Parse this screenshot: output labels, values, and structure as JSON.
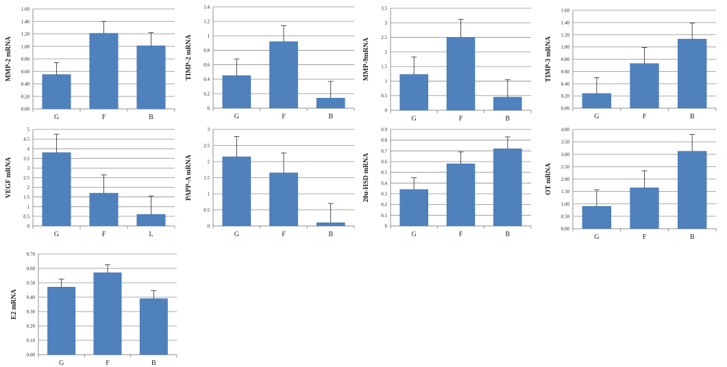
{
  "colors": {
    "bar": "#4f81bd",
    "bar_edge": "#3f6fa8",
    "grid": "#8c8c8c",
    "axis": "#8c8c8c",
    "error": "#222222"
  },
  "chart_data": [
    {
      "type": "bar",
      "ylabel": "MMP-2 mRNA",
      "categories": [
        "G",
        "F",
        "B"
      ],
      "values": [
        0.55,
        1.21,
        1.01
      ],
      "errors": [
        0.19,
        0.19,
        0.21
      ],
      "ylim": [
        0,
        1.6
      ],
      "ytick_labels": [
        "0.00",
        "0.20",
        "0.40",
        "0.60",
        "0.80",
        "1.00",
        "1.20",
        "1.40",
        "1.60"
      ],
      "grid": true
    },
    {
      "type": "bar",
      "ylabel": "TIMP-2 mRNA",
      "categories": [
        "G",
        "F",
        "B"
      ],
      "values": [
        0.45,
        0.92,
        0.14
      ],
      "errors": [
        0.23,
        0.22,
        0.23
      ],
      "ylim": [
        0,
        1.4
      ],
      "ytick_labels": [
        "0",
        "0.2",
        "0.4",
        "0.6",
        "0.8",
        "1",
        "1.2",
        "1.4"
      ],
      "grid": true
    },
    {
      "type": "bar",
      "ylabel": "MMP-9mRNA",
      "categories": [
        "G",
        "F",
        "B"
      ],
      "values": [
        1.23,
        2.5,
        0.45
      ],
      "errors": [
        0.6,
        0.62,
        0.6
      ],
      "ylim": [
        0,
        3.5
      ],
      "ytick_labels": [
        "0",
        "0.5",
        "1",
        "1.5",
        "2",
        "2.5",
        "3",
        "3.5"
      ],
      "grid": true
    },
    {
      "type": "bar",
      "ylabel": "TIMP-3 mRNA",
      "categories": [
        "G",
        "F",
        "B"
      ],
      "values": [
        0.24,
        0.73,
        1.13
      ],
      "errors": [
        0.26,
        0.26,
        0.26
      ],
      "ylim": [
        0,
        1.6
      ],
      "ytick_labels": [
        "0.00",
        "0.20",
        "0.40",
        "0.60",
        "0.80",
        "1.00",
        "1.20",
        "1.40",
        "1.60"
      ],
      "grid": true
    },
    {
      "type": "bar",
      "ylabel": "VEGF mRNA",
      "categories": [
        "G",
        "F",
        "L"
      ],
      "values": [
        3.8,
        1.7,
        0.6
      ],
      "errors": [
        0.95,
        0.95,
        0.95
      ],
      "ylim": [
        0,
        5
      ],
      "ytick_labels": [
        "0",
        "0.5",
        "1",
        "1.5",
        "2",
        "2.5",
        "3",
        "3.5",
        "4",
        "4.5",
        "5"
      ],
      "grid": true
    },
    {
      "type": "bar",
      "ylabel": "PAPP-A mRNA",
      "categories": [
        "G",
        "F",
        "B"
      ],
      "values": [
        2.15,
        1.65,
        0.1
      ],
      "errors": [
        0.63,
        0.62,
        0.6
      ],
      "ylim": [
        0,
        3
      ],
      "ytick_labels": [
        "0",
        "0.5",
        "1",
        "1.5",
        "2",
        "2.5",
        "3"
      ],
      "grid": true
    },
    {
      "type": "bar",
      "ylabel": "20α-HSD mRNA",
      "categories": [
        "G",
        "F",
        "B"
      ],
      "values": [
        0.34,
        0.58,
        0.72
      ],
      "errors": [
        0.11,
        0.11,
        0.11
      ],
      "ylim": [
        0,
        0.9
      ],
      "ytick_labels": [
        "0",
        "0.1",
        "0.2",
        "0.3",
        "0.4",
        "0.5",
        "0.6",
        "0.7",
        "0.8",
        "0.9"
      ],
      "grid": true
    },
    {
      "type": "bar",
      "ylabel": "OT mRNA",
      "categories": [
        "G",
        "F",
        "B"
      ],
      "values": [
        0.9,
        1.65,
        3.12
      ],
      "errors": [
        0.67,
        0.68,
        0.67
      ],
      "ylim": [
        0,
        4
      ],
      "ytick_labels": [
        "0.00",
        "0.50",
        "1.00",
        "1.50",
        "2.00",
        "2.50",
        "3.00",
        "3.50",
        "4.00"
      ],
      "grid": true
    },
    {
      "type": "bar",
      "ylabel": "E2 mRNA",
      "categories": [
        "G",
        "F",
        "B"
      ],
      "values": [
        0.47,
        0.57,
        0.39
      ],
      "errors": [
        0.055,
        0.055,
        0.055
      ],
      "ylim": [
        0,
        0.7
      ],
      "ytick_labels": [
        "0.00",
        "0.10",
        "0.20",
        "0.30",
        "0.40",
        "0.50",
        "0.60",
        "0.70"
      ],
      "grid": true
    }
  ]
}
